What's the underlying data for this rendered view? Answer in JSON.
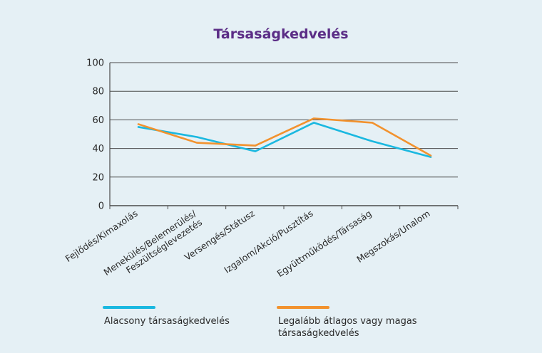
{
  "colors": {
    "background": "#e5f0f5",
    "title": "#5b2d86",
    "grid": "#4a4a4a",
    "series_low": "#1ab8e0",
    "series_high": "#f2922e"
  },
  "chart_data": {
    "type": "line",
    "title": "Társaságkedvelés",
    "xlabel": "",
    "ylabel": "",
    "ylim": [
      0,
      100
    ],
    "yticks": [
      "0",
      "20",
      "40",
      "60",
      "80",
      "100"
    ],
    "grid": true,
    "legend_position": "bottom",
    "categories": [
      "Fejlődés/Kimaxolás",
      "Menekülés/Belemerülés/\nFeszültséglevezetés",
      "Versengés/Státusz",
      "Izgalom/Akció/Pusztítás",
      "Együttműködés/Társaság",
      "Megszokás/Unalom"
    ],
    "series": [
      {
        "name": "Alacsony társaságkedvelés",
        "values": [
          55,
          48,
          38,
          58,
          45,
          34
        ]
      },
      {
        "name": "Legalább átlagos vagy magas\ntársaságkedvelés",
        "values": [
          57,
          44,
          42,
          61,
          58,
          35
        ]
      }
    ]
  }
}
